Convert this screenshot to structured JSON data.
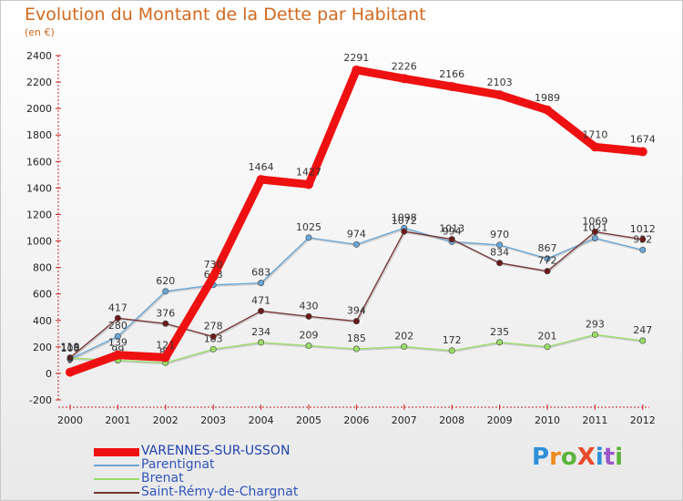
{
  "title": "Evolution du Montant de la Dette par Habitant",
  "unit_label": "(en €)",
  "logo": {
    "text": "ProXiti",
    "letters": [
      "P",
      "r",
      "o",
      "X",
      "i",
      "t",
      "i"
    ],
    "colors": [
      "#2e8fd8",
      "#f08a1c",
      "#5ab43c",
      "#e84a2a",
      "#2e8fd8",
      "#9a56c8",
      "#5ab43c"
    ]
  },
  "chart_data": {
    "type": "line",
    "title": "Evolution du Montant de la Dette par Habitant",
    "ylabel": "(en €)",
    "x": [
      "2000",
      "2001",
      "2002",
      "2003",
      "2004",
      "2005",
      "2006",
      "2007",
      "2008",
      "2009",
      "2010",
      "2011",
      "2012"
    ],
    "ylim": [
      -200,
      2400
    ],
    "yticks": [
      "-200",
      "0",
      "200",
      "400",
      "600",
      "800",
      "1000",
      "1200",
      "1400",
      "1600",
      "1800",
      "2000",
      "2200",
      "2400"
    ],
    "grid": false,
    "legend_position": "bottom-left",
    "series": [
      {
        "name": "VARENNES-SUR-USSON",
        "color": "#ee1111",
        "highlight": true,
        "values": [
          9,
          139,
          121,
          730,
          1464,
          1427,
          2291,
          2226,
          2166,
          2103,
          1989,
          1710,
          1674
        ],
        "labels": [
          "9",
          "139",
          "121",
          "730",
          "1464",
          "1427",
          "2291",
          "2226",
          "2166",
          "2103",
          "1989",
          "1710",
          "1674"
        ]
      },
      {
        "name": "Parentignat",
        "color": "#6aa6d6",
        "values": [
          108,
          280,
          620,
          668,
          683,
          1025,
          974,
          1098,
          994,
          970,
          867,
          1021,
          932
        ],
        "labels": [
          "108",
          "280",
          "620",
          "668",
          "683",
          "1025",
          "974",
          "1098",
          "994",
          "970",
          "867",
          "1021",
          "932"
        ]
      },
      {
        "name": "Brenat",
        "color": "#99dd66",
        "values": [
          116,
          99,
          80,
          183,
          234,
          209,
          185,
          202,
          172,
          235,
          201,
          293,
          247
        ],
        "labels": [
          "116",
          "99",
          "80",
          "183",
          "234",
          "209",
          "185",
          "202",
          "172",
          "235",
          "201",
          "293",
          "247"
        ]
      },
      {
        "name": "Saint-Rémy-de-Chargnat",
        "color": "#773333",
        "values": [
          119,
          417,
          376,
          278,
          471,
          430,
          394,
          1072,
          1013,
          834,
          772,
          1069,
          1012
        ],
        "labels": [
          "119",
          "417",
          "376",
          "278",
          "471",
          "430",
          "394",
          "1072",
          "1013",
          "834",
          "772",
          "1069",
          "1012"
        ]
      }
    ]
  }
}
